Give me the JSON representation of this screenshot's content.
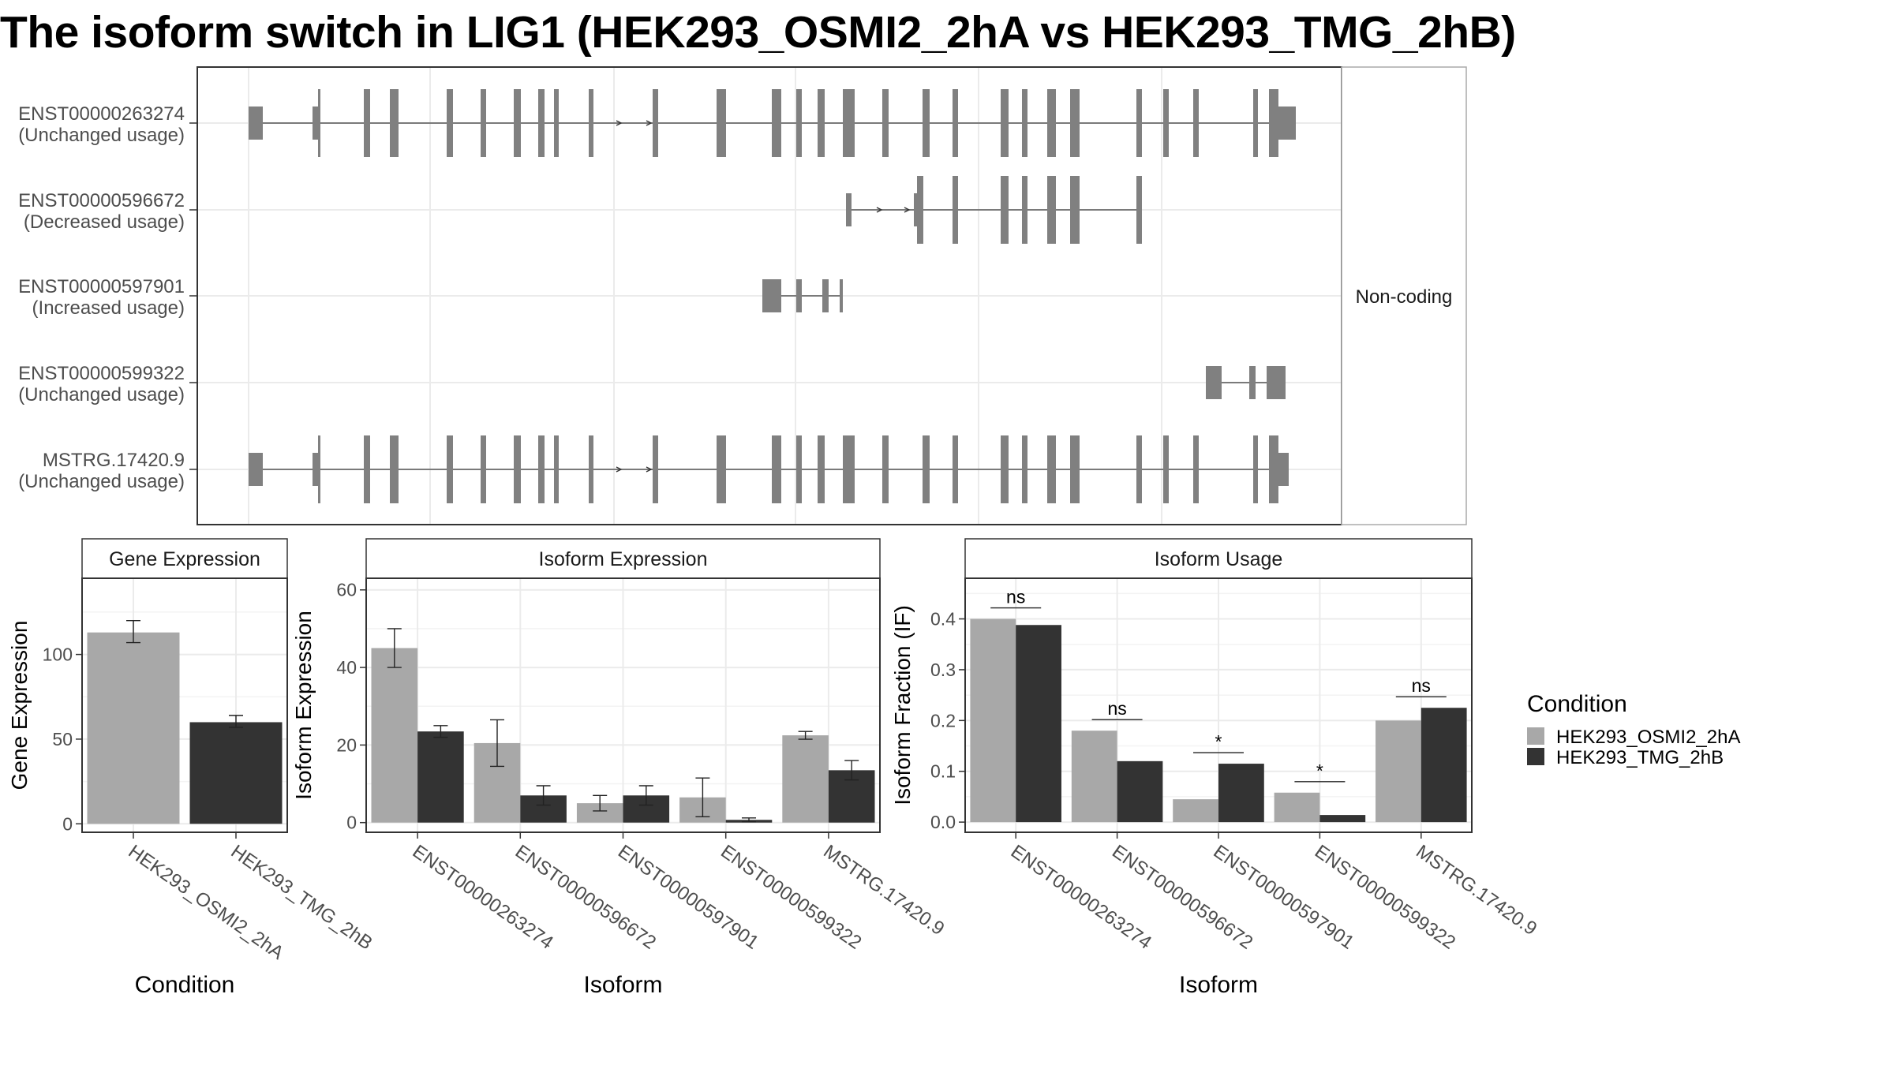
{
  "title": "The isoform switch in LIG1 (HEK293_OSMI2_2hA vs HEK293_TMG_2hB)",
  "colors": {
    "cond1": "#a8a8a8",
    "cond2": "#333333",
    "exon": "#808080",
    "grid": "#ebebeb",
    "frame": "#333333",
    "stripFill": "#ffffff"
  },
  "chart_data": [
    {
      "type": "gene-structure",
      "facet_label": "Non-coding",
      "transcripts": [
        {
          "id": "ENST00000263274",
          "usage": "(Unchanged usage)"
        },
        {
          "id": "ENST00000596672",
          "usage": "(Decreased usage)"
        },
        {
          "id": "ENST00000597901",
          "usage": "(Increased usage)"
        },
        {
          "id": "ENST00000599322",
          "usage": "(Unchanged usage)"
        },
        {
          "id": "MSTRG.17420.9",
          "usage": "(Unchanged usage)"
        }
      ]
    },
    {
      "type": "bar",
      "strip": "Gene Expression",
      "xlabel": "Condition",
      "ylabel": "Gene Expression",
      "categories": [
        "HEK293_OSMI2_2hA",
        "HEK293_TMG_2hB"
      ],
      "series": [
        {
          "values": [
            113,
            60
          ],
          "err": [
            [
              107,
              120
            ],
            [
              57,
              64
            ]
          ]
        }
      ],
      "yticks": [
        "0",
        "50",
        "100"
      ],
      "ylim": [
        -5,
        145
      ]
    },
    {
      "type": "bar",
      "strip": "Isoform Expression",
      "xlabel": "Isoform",
      "ylabel": "Isoform Expression",
      "categories": [
        "ENST00000263274",
        "ENST00000596672",
        "ENST00000597901",
        "ENST00000599322",
        "MSTRG.17420.9"
      ],
      "series": [
        {
          "name": "HEK293_OSMI2_2hA",
          "values": [
            45,
            20.5,
            5,
            6.5,
            22.5
          ],
          "err": [
            [
              40,
              50
            ],
            [
              14.5,
              26.5
            ],
            [
              3,
              7
            ],
            [
              1.5,
              11.5
            ],
            [
              21.5,
              23.5
            ]
          ]
        },
        {
          "name": "HEK293_TMG_2hB",
          "values": [
            23.5,
            7,
            7,
            0.7,
            13.5
          ],
          "err": [
            [
              22,
              25
            ],
            [
              4.5,
              9.5
            ],
            [
              4.5,
              9.5
            ],
            [
              0.2,
              1.2
            ],
            [
              11,
              16
            ]
          ]
        }
      ],
      "yticks": [
        "0",
        "20",
        "40",
        "60"
      ],
      "ylim": [
        -2.5,
        63
      ]
    },
    {
      "type": "bar",
      "strip": "Isoform Usage",
      "xlabel": "Isoform",
      "ylabel": "Isoform Fraction (IF)",
      "categories": [
        "ENST00000263274",
        "ENST00000596672",
        "ENST00000597901",
        "ENST00000599322",
        "MSTRG.17420.9"
      ],
      "series": [
        {
          "name": "HEK293_OSMI2_2hA",
          "values": [
            0.4,
            0.18,
            0.045,
            0.058,
            0.2
          ]
        },
        {
          "name": "HEK293_TMG_2hB",
          "values": [
            0.388,
            0.12,
            0.115,
            0.014,
            0.225
          ]
        }
      ],
      "significance": [
        "ns",
        "ns",
        "*",
        "*",
        "ns"
      ],
      "yticks": [
        "0.0",
        "0.1",
        "0.2",
        "0.3",
        "0.4"
      ],
      "ylim": [
        -0.02,
        0.48
      ]
    }
  ],
  "legend": {
    "title": "Condition",
    "items": [
      "HEK293_OSMI2_2hA",
      "HEK293_TMG_2hB"
    ]
  }
}
